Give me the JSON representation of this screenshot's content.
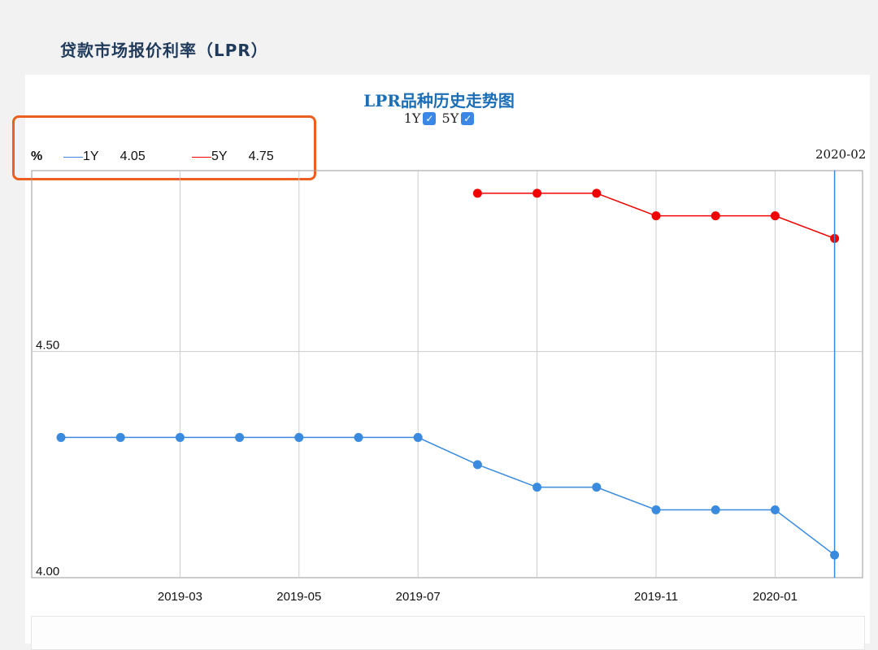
{
  "page": {
    "title": "贷款市场报价利率（LPR）"
  },
  "chart_data": {
    "type": "line",
    "title": "LPR品种历史走势图",
    "ylabel": "%",
    "ylim": [
      4.0,
      4.9
    ],
    "yticks": [
      "4.00",
      "4.50"
    ],
    "x": [
      "2019-01",
      "2019-02",
      "2019-03",
      "2019-04",
      "2019-05",
      "2019-06",
      "2019-07",
      "2019-08",
      "2019-09",
      "2019-10",
      "2019-11",
      "2019-12",
      "2020-01",
      "2020-02"
    ],
    "xtick_labels": [
      {
        "x": "2019-03",
        "label": "2019-03"
      },
      {
        "x": "2019-05",
        "label": "2019-05"
      },
      {
        "x": "2019-07",
        "label": "2019-07"
      },
      {
        "x": "2019-11",
        "label": "2019-11"
      },
      {
        "x": "2020-01",
        "label": "2020-01"
      }
    ],
    "gridlines_x": [
      "2019-03",
      "2019-05",
      "2019-07",
      "2019-09",
      "2019-11",
      "2020-01"
    ],
    "series": [
      {
        "name": "1Y",
        "color": "#3a8ae0",
        "values": [
          4.31,
          4.31,
          4.31,
          4.31,
          4.31,
          4.31,
          4.31,
          4.25,
          4.2,
          4.2,
          4.15,
          4.15,
          4.15,
          4.05
        ]
      },
      {
        "name": "5Y",
        "color": "#f00000",
        "values": [
          null,
          null,
          null,
          null,
          null,
          null,
          null,
          4.85,
          4.85,
          4.85,
          4.8,
          4.8,
          4.8,
          4.75
        ]
      }
    ],
    "grid": true,
    "hover": {
      "x": "2020-02",
      "label": "2020-02"
    }
  },
  "toggles": [
    {
      "label": "1Y",
      "checked": "✓"
    },
    {
      "label": "5Y",
      "checked": "✓"
    }
  ],
  "readout": {
    "unit": "%",
    "items": [
      {
        "name": "1Y",
        "value": "4.05",
        "color": "#3a8ae0"
      },
      {
        "name": "5Y",
        "value": "4.75",
        "color": "#f00000"
      }
    ]
  }
}
